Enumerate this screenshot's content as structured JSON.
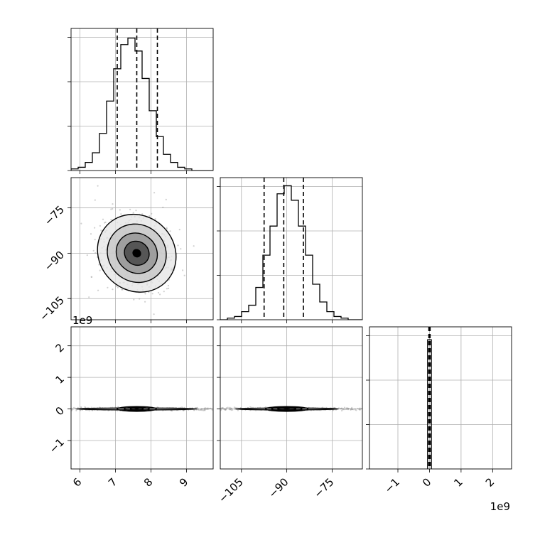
{
  "chart_data": {
    "type": "corner",
    "exponent_label": "1e9",
    "quantile_line_color": "#000000",
    "hist_color": "#000000",
    "grid": true,
    "variables": [
      {
        "range": [
          5.75,
          9.75
        ],
        "ticks": [
          "6",
          "7",
          "8",
          "9"
        ],
        "quantiles": [
          7.05,
          7.6,
          8.18
        ]
      },
      {
        "range": [
          -112,
          -65
        ],
        "ticks": [
          "-105",
          "-90",
          "-75"
        ],
        "quantiles": [
          -97.5,
          -91,
          -84.5
        ]
      },
      {
        "range": [
          -1.9,
          2.6
        ],
        "ticks": [
          "-1",
          "0",
          "1",
          "2"
        ],
        "quantiles": [
          -0.02,
          0.0,
          0.02
        ],
        "scale_label": "1e9"
      }
    ],
    "histograms": [
      {
        "variable": 0,
        "bin_edges": [
          5.75,
          5.95,
          6.15,
          6.35,
          6.55,
          6.75,
          6.95,
          7.15,
          7.35,
          7.55,
          7.75,
          7.95,
          8.15,
          8.35,
          8.55,
          8.75,
          8.95,
          9.15,
          9.35,
          9.55,
          9.75
        ],
        "counts": [
          1,
          2,
          5,
          11,
          23,
          43,
          63,
          78,
          82,
          74,
          57,
          37,
          21,
          10,
          5,
          2,
          1,
          0,
          0,
          0
        ],
        "ylim": [
          0,
          88
        ]
      },
      {
        "variable": 1,
        "bin_edges": [
          -112,
          -109.65,
          -107.3,
          -104.95,
          -102.6,
          -100.25,
          -97.9,
          -95.55,
          -93.2,
          -90.85,
          -88.5,
          -86.15,
          -83.8,
          -81.45,
          -79.1,
          -76.75,
          -74.4,
          -72.05,
          -69.7,
          -67.35,
          -65
        ],
        "counts": [
          0,
          1,
          2,
          5,
          9,
          20,
          40,
          58,
          78,
          83,
          74,
          58,
          40,
          22,
          11,
          5,
          2,
          1,
          0,
          0
        ],
        "ylim": [
          0,
          88
        ]
      },
      {
        "variable": 2,
        "bin_edges": [
          -0.06,
          0.06
        ],
        "counts": [
          1
        ],
        "ylim": [
          0,
          1.1
        ]
      }
    ],
    "contours": [
      {
        "x": 0,
        "y": 1,
        "center": [
          7.6,
          -90
        ],
        "levels": [
          {
            "level": 0.5,
            "sx": 0.33,
            "sy": 4.2,
            "angle": 55
          },
          {
            "level": 1.0,
            "sx": 0.55,
            "sy": 7.0,
            "angle": 52
          },
          {
            "level": 1.5,
            "sx": 0.8,
            "sy": 10.0,
            "angle": 50
          },
          {
            "level": 2.0,
            "sx": 1.05,
            "sy": 13.5,
            "angle": 48
          }
        ]
      },
      {
        "x": 0,
        "y": 2,
        "center": [
          7.6,
          0.0
        ],
        "levels": [
          {
            "level": 0.5,
            "sx": 0.18,
            "sy": 0.035,
            "angle": 0
          },
          {
            "level": 1.0,
            "sx": 0.35,
            "sy": 0.055,
            "angle": 0
          },
          {
            "level": 1.5,
            "sx": 0.55,
            "sy": 0.075,
            "angle": 0
          },
          {
            "level": 2.0,
            "sx": 1.7,
            "sy": 0.03,
            "angle": 0
          }
        ]
      },
      {
        "x": 1,
        "y": 2,
        "center": [
          -90,
          0.0
        ],
        "levels": [
          {
            "level": 0.5,
            "sx": 3.0,
            "sy": 0.035,
            "angle": 0
          },
          {
            "level": 1.0,
            "sx": 5.0,
            "sy": 0.055,
            "angle": 0
          },
          {
            "level": 1.5,
            "sx": 7.0,
            "sy": 0.075,
            "angle": 0
          },
          {
            "level": 2.0,
            "sx": 17.0,
            "sy": 0.03,
            "angle": 0
          }
        ]
      }
    ]
  }
}
